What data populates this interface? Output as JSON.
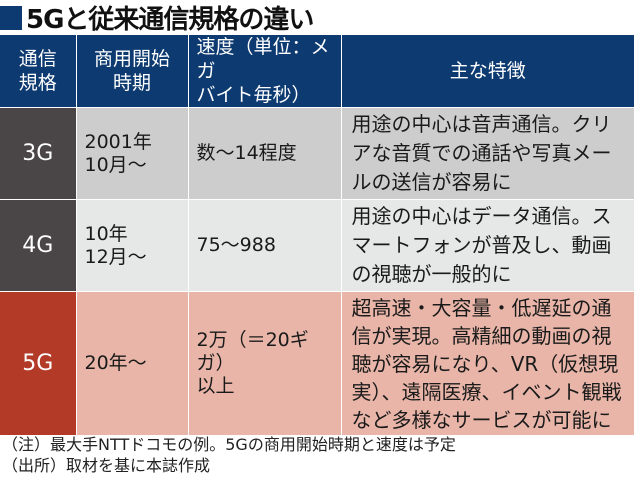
{
  "title": "5Gと従来通信規格の違い",
  "colors": {
    "header_bg": "#0d3a70",
    "gen_3g_4g_bg": "#4a4546",
    "gen_5g_bg": "#b33a26",
    "row_3g_bg": "#cdcdcd",
    "row_4g_bg": "#e6e7e7",
    "row_5g_bg": "#e8b5a8"
  },
  "table": {
    "headers": [
      {
        "line1": "通信",
        "line2": "規格"
      },
      {
        "line1": "商用開始",
        "line2": "時期"
      },
      {
        "line1": "速度（単位：メガ",
        "line2": "バイト毎秒）"
      },
      {
        "line1": "主な特徴",
        "line2": ""
      }
    ],
    "rows": [
      {
        "generation": "3G",
        "start_line1": "2001年",
        "start_line2": "10月〜",
        "speed_line1": "数〜14程度",
        "speed_line2": "",
        "features": "用途の中心は音声通信。クリアな音質での通話や写真メールの送信が容易に"
      },
      {
        "generation": "4G",
        "start_line1": "10年",
        "start_line2": "12月〜",
        "speed_line1": "75〜988",
        "speed_line2": "",
        "features": "用途の中心はデータ通信。スマートフォンが普及し、動画の視聴が一般的に"
      },
      {
        "generation": "5G",
        "start_line1": "20年〜",
        "start_line2": "",
        "speed_line1": "2万（＝20ギガ）",
        "speed_line2": "以上",
        "features": "超高速・大容量・低遅延の通信が実現。高精細の動画の視聴が容易になり、VR（仮想現実）、遠隔医療、イベント観戦など多様なサービスが可能に"
      }
    ]
  },
  "footer": {
    "note": "（注）最大手NTTドコモの例。5Gの商用開始時期と速度は予定",
    "source": "（出所）取材を基に本誌作成"
  }
}
